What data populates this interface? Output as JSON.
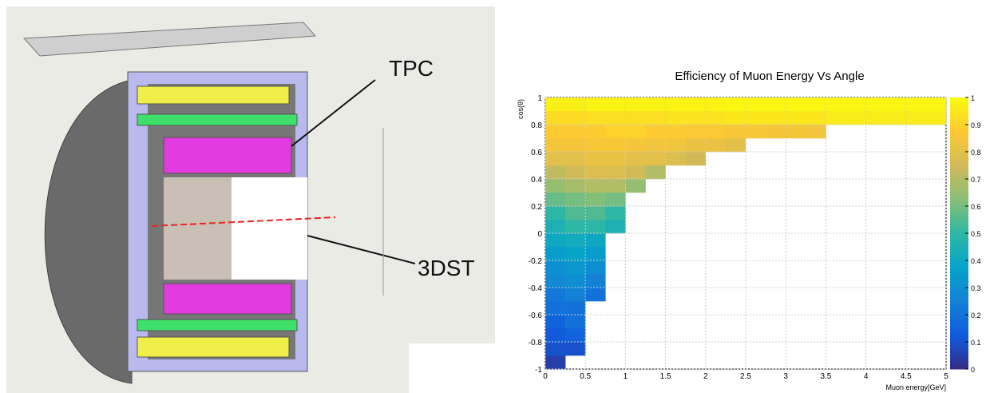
{
  "diagram": {
    "labels": {
      "tpc": "TPC",
      "tdst": "3DST"
    }
  },
  "chart_data": {
    "type": "heatmap",
    "title": "Efficiency of Muon Energy Vs Angle",
    "x_label": "Muon energy[GeV]",
    "y_label": "cos(θ)",
    "xlim": [
      0,
      5
    ],
    "ylim": [
      -1,
      1
    ],
    "zlim": [
      0,
      1
    ],
    "xticks": [
      0,
      0.5,
      1,
      1.5,
      2,
      2.5,
      3,
      3.5,
      4,
      4.5,
      5
    ],
    "yticks": [
      -1,
      -0.8,
      -0.6,
      -0.4,
      -0.2,
      0,
      0.2,
      0.4,
      0.6,
      0.8,
      1
    ],
    "zticks": [
      0,
      0.1,
      0.2,
      0.3,
      0.4,
      0.5,
      0.6,
      0.7,
      0.8,
      0.9,
      1
    ],
    "grid": true,
    "colormap": "bird",
    "xbins": [
      0,
      0.25,
      0.5,
      0.75,
      1,
      1.25,
      1.5,
      1.75,
      2,
      2.25,
      2.5,
      2.75,
      3,
      3.25,
      3.5,
      3.75,
      4,
      4.25,
      4.5,
      4.75,
      5
    ],
    "ybins": [
      -1,
      -0.9,
      -0.8,
      -0.7,
      -0.6,
      -0.5,
      -0.4,
      -0.3,
      -0.2,
      -0.1,
      0,
      0.1,
      0.2,
      0.3,
      0.4,
      0.5,
      0.6,
      0.7,
      0.8,
      0.9,
      1
    ],
    "z": [
      [
        0.05,
        null,
        null,
        null,
        null,
        null,
        null,
        null,
        null,
        null,
        null,
        null,
        null,
        null,
        null,
        null,
        null,
        null,
        null,
        null
      ],
      [
        0.1,
        0.1,
        null,
        null,
        null,
        null,
        null,
        null,
        null,
        null,
        null,
        null,
        null,
        null,
        null,
        null,
        null,
        null,
        null,
        null
      ],
      [
        0.12,
        0.15,
        null,
        null,
        null,
        null,
        null,
        null,
        null,
        null,
        null,
        null,
        null,
        null,
        null,
        null,
        null,
        null,
        null,
        null
      ],
      [
        0.15,
        0.2,
        null,
        null,
        null,
        null,
        null,
        null,
        null,
        null,
        null,
        null,
        null,
        null,
        null,
        null,
        null,
        null,
        null,
        null
      ],
      [
        0.2,
        0.2,
        null,
        null,
        null,
        null,
        null,
        null,
        null,
        null,
        null,
        null,
        null,
        null,
        null,
        null,
        null,
        null,
        null,
        null
      ],
      [
        0.22,
        0.25,
        0.2,
        null,
        null,
        null,
        null,
        null,
        null,
        null,
        null,
        null,
        null,
        null,
        null,
        null,
        null,
        null,
        null,
        null
      ],
      [
        0.28,
        0.3,
        0.25,
        null,
        null,
        null,
        null,
        null,
        null,
        null,
        null,
        null,
        null,
        null,
        null,
        null,
        null,
        null,
        null,
        null
      ],
      [
        0.3,
        0.33,
        0.3,
        null,
        null,
        null,
        null,
        null,
        null,
        null,
        null,
        null,
        null,
        null,
        null,
        null,
        null,
        null,
        null,
        null
      ],
      [
        0.35,
        0.38,
        0.35,
        null,
        null,
        null,
        null,
        null,
        null,
        null,
        null,
        null,
        null,
        null,
        null,
        null,
        null,
        null,
        null,
        null
      ],
      [
        0.4,
        0.42,
        0.4,
        null,
        null,
        null,
        null,
        null,
        null,
        null,
        null,
        null,
        null,
        null,
        null,
        null,
        null,
        null,
        null,
        null
      ],
      [
        0.45,
        0.5,
        0.5,
        0.45,
        null,
        null,
        null,
        null,
        null,
        null,
        null,
        null,
        null,
        null,
        null,
        null,
        null,
        null,
        null,
        null
      ],
      [
        0.5,
        0.55,
        0.55,
        0.5,
        null,
        null,
        null,
        null,
        null,
        null,
        null,
        null,
        null,
        null,
        null,
        null,
        null,
        null,
        null,
        null
      ],
      [
        0.58,
        0.6,
        0.62,
        0.6,
        null,
        null,
        null,
        null,
        null,
        null,
        null,
        null,
        null,
        null,
        null,
        null,
        null,
        null,
        null,
        null
      ],
      [
        0.65,
        0.68,
        0.7,
        0.7,
        0.65,
        null,
        null,
        null,
        null,
        null,
        null,
        null,
        null,
        null,
        null,
        null,
        null,
        null,
        null,
        null
      ],
      [
        0.72,
        0.75,
        0.78,
        0.78,
        0.75,
        0.7,
        null,
        null,
        null,
        null,
        null,
        null,
        null,
        null,
        null,
        null,
        null,
        null,
        null,
        null
      ],
      [
        0.8,
        0.8,
        0.82,
        0.82,
        0.8,
        0.8,
        0.78,
        0.75,
        null,
        null,
        null,
        null,
        null,
        null,
        null,
        null,
        null,
        null,
        null,
        null
      ],
      [
        0.85,
        0.85,
        0.86,
        0.86,
        0.85,
        0.84,
        0.84,
        0.82,
        0.82,
        0.8,
        null,
        null,
        null,
        null,
        null,
        null,
        null,
        null,
        null,
        null
      ],
      [
        0.88,
        0.88,
        0.88,
        0.9,
        0.9,
        0.88,
        0.88,
        0.87,
        0.87,
        0.86,
        0.86,
        0.85,
        0.85,
        0.84,
        null,
        null,
        null,
        null,
        null,
        null
      ],
      [
        0.92,
        0.92,
        0.93,
        0.93,
        0.93,
        0.93,
        0.94,
        0.94,
        0.94,
        0.95,
        0.95,
        0.95,
        0.95,
        0.95,
        0.96,
        0.96,
        0.96,
        0.96,
        0.96,
        0.96
      ],
      [
        0.97,
        0.97,
        0.98,
        0.98,
        0.98,
        0.98,
        0.98,
        0.98,
        0.98,
        0.99,
        0.99,
        0.99,
        0.99,
        0.99,
        0.99,
        0.99,
        0.99,
        0.99,
        0.99,
        0.99
      ]
    ]
  }
}
